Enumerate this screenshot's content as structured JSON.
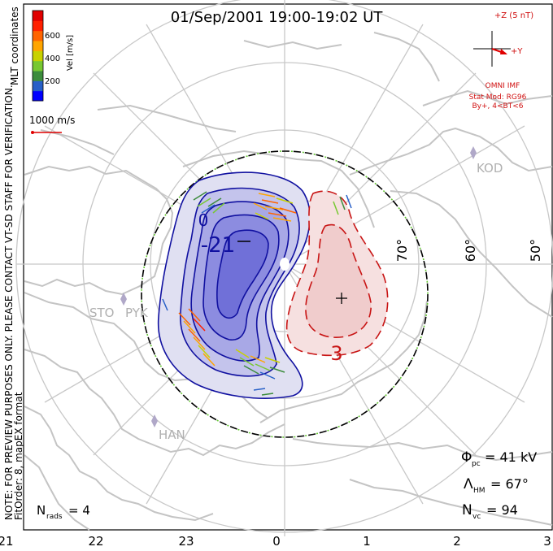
{
  "title": "01/Sep/2001 19:00-19:02 UT",
  "coords_label": "MLT coordinates",
  "colorbar": {
    "label": "Vel [m/s]",
    "ticks": [
      "600",
      "400",
      "200"
    ],
    "colors": [
      "#0000ff",
      "#2860c8",
      "#3c8c3c",
      "#78c832",
      "#c8d200",
      "#ffa500",
      "#ff6400",
      "#ff2000",
      "#e00000"
    ]
  },
  "ref_vector": "1000 m/s",
  "imf": {
    "z_label": "+Z (5 nT)",
    "y_label": "+Y",
    "source": "OMNI IMF",
    "model": "Stat Mod: RG96",
    "condition": "By+, 4<BT<6"
  },
  "notes": {
    "line1": "NOTE: FOR PREVIEW PURPOSES ONLY. PLEASE CONTACT VT-SD STAFF FOR VERIFICATION.",
    "line2": "FitOrder: 8, mapEX format"
  },
  "stations": [
    "KOD",
    "STO",
    "PYK",
    "HAN"
  ],
  "stats": {
    "phi_pc_sym": "Φ",
    "phi_pc_sub": "pc",
    "phi_pc_val": "= 41 kV",
    "lambda_sym": "Λ",
    "lambda_sub": "HM",
    "lambda_val": "= 67°",
    "nvc_sym": "N",
    "nvc_sub": "vc",
    "nvc_val": "= 94",
    "nrads_sym": "N",
    "nrads_sub": "rads",
    "nrads_val": "= 4"
  },
  "chart_data": {
    "type": "polar-map",
    "mlt_axis_labels": [
      "21",
      "22",
      "23",
      "0",
      "1",
      "2",
      "3"
    ],
    "mlat_labels": [
      "70°",
      "60°",
      "50°"
    ],
    "hm_boundary_latitude": 67,
    "potential_contours": {
      "negative_cell_labels": [
        "0",
        "-21"
      ],
      "positive_cell_labels": [
        "3"
      ]
    },
    "colors": {
      "negative_cell": "#1010a0",
      "positive_cell": "#c81414",
      "coast": "#c8c8c8",
      "grid": "#c8c8c8"
    }
  }
}
